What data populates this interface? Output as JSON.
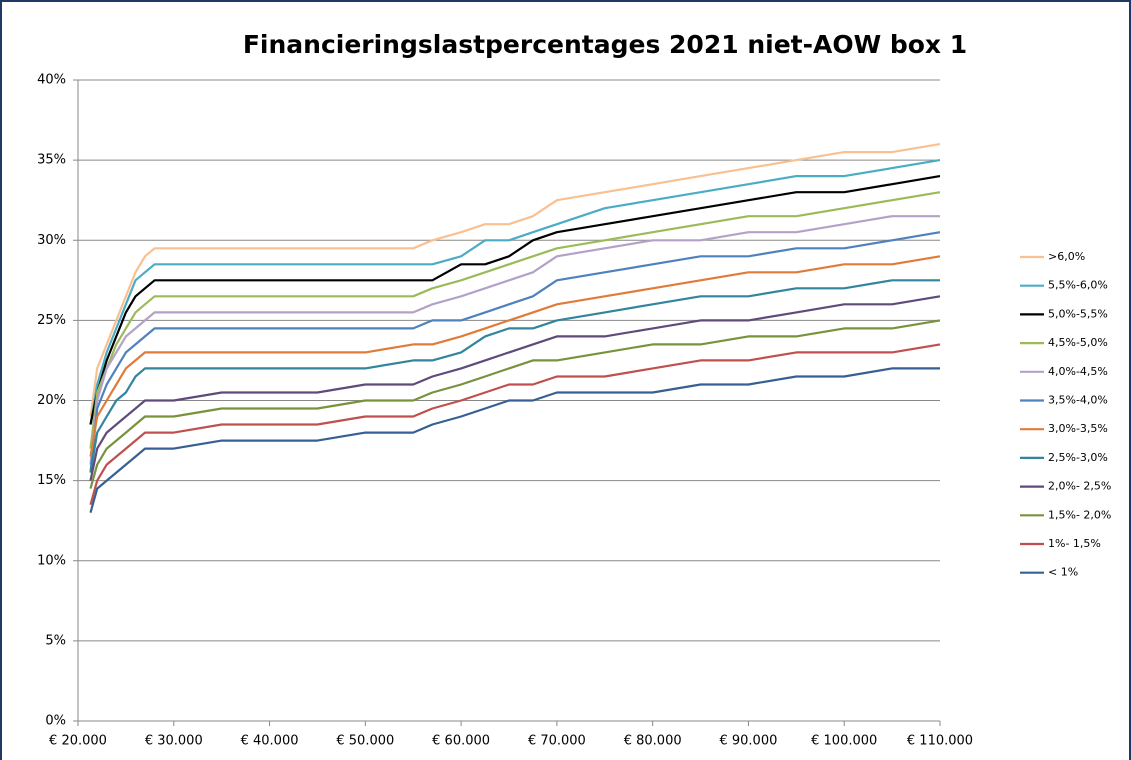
{
  "chart_data": {
    "type": "line",
    "title": "Financieringslastpercentages 2021 niet-AOW box 1",
    "x": [
      21300,
      22000,
      23000,
      24000,
      25000,
      26000,
      27000,
      28000,
      30000,
      35000,
      40000,
      45000,
      50000,
      55000,
      57000,
      60000,
      62500,
      65000,
      67500,
      70000,
      75000,
      80000,
      85000,
      90000,
      95000,
      100000,
      105000,
      110000
    ],
    "series": [
      {
        "name": ">6,0%",
        "color": "#fac090",
        "values": [
          19,
          22,
          23.5,
          25,
          26.5,
          28,
          29,
          29.5,
          29.5,
          29.5,
          29.5,
          29.5,
          29.5,
          29.5,
          30,
          30.5,
          31,
          31,
          31.5,
          32.5,
          33,
          33.5,
          34,
          34.5,
          35,
          35.5,
          35.5,
          36
        ]
      },
      {
        "name": "5,5%-6,0%",
        "color": "#4bacc6",
        "values": [
          18.5,
          21,
          23,
          24.5,
          26,
          27.5,
          28,
          28.5,
          28.5,
          28.5,
          28.5,
          28.5,
          28.5,
          28.5,
          28.5,
          29,
          30,
          30,
          30.5,
          31,
          32,
          32.5,
          33,
          33.5,
          34,
          34,
          34.5,
          35
        ]
      },
      {
        "name": "5,0%-5,5%",
        "color": "#000000",
        "values": [
          18.5,
          20.5,
          22.5,
          24,
          25.5,
          26.5,
          27,
          27.5,
          27.5,
          27.5,
          27.5,
          27.5,
          27.5,
          27.5,
          27.5,
          28.5,
          28.5,
          29,
          30,
          30.5,
          31,
          31.5,
          32,
          32.5,
          33,
          33,
          33.5,
          34
        ]
      },
      {
        "name": "4,5%-5,0%",
        "color": "#9bbb59",
        "values": [
          17,
          20.5,
          22,
          23.5,
          24.5,
          25.5,
          26,
          26.5,
          26.5,
          26.5,
          26.5,
          26.5,
          26.5,
          26.5,
          27,
          27.5,
          28,
          28.5,
          29,
          29.5,
          30,
          30.5,
          31,
          31.5,
          31.5,
          32,
          32.5,
          33
        ]
      },
      {
        "name": "4,0%-4,5%",
        "color": "#b3a2c7",
        "values": [
          16,
          20,
          22,
          23,
          24,
          24.5,
          25,
          25.5,
          25.5,
          25.5,
          25.5,
          25.5,
          25.5,
          25.5,
          26,
          26.5,
          27,
          27.5,
          28,
          29,
          29.5,
          30,
          30,
          30.5,
          30.5,
          31,
          31.5,
          31.5
        ]
      },
      {
        "name": "3,5%-4,0%",
        "color": "#4f81bd",
        "values": [
          15.5,
          19.5,
          21,
          22,
          23,
          23.5,
          24,
          24.5,
          24.5,
          24.5,
          24.5,
          24.5,
          24.5,
          24.5,
          25,
          25,
          25.5,
          26,
          26.5,
          27.5,
          28,
          28.5,
          29,
          29,
          29.5,
          29.5,
          30,
          30.5
        ]
      },
      {
        "name": "3,0%-3,5%",
        "color": "#e07b39",
        "values": [
          16.5,
          19,
          20,
          21,
          22,
          22.5,
          23,
          23,
          23,
          23,
          23,
          23,
          23,
          23.5,
          23.5,
          24,
          24.5,
          25,
          25.5,
          26,
          26.5,
          27,
          27.5,
          28,
          28,
          28.5,
          28.5,
          29
        ]
      },
      {
        "name": "2,5%-3,0%",
        "color": "#31859c",
        "values": [
          15.5,
          18,
          19,
          20,
          20.5,
          21.5,
          22,
          22,
          22,
          22,
          22,
          22,
          22,
          22.5,
          22.5,
          23,
          24,
          24.5,
          24.5,
          25,
          25.5,
          26,
          26.5,
          26.5,
          27,
          27,
          27.5,
          27.5
        ]
      },
      {
        "name": "2,0%- 2,5%",
        "color": "#604a7b",
        "values": [
          15,
          17,
          18,
          18.5,
          19,
          19.5,
          20,
          20,
          20,
          20.5,
          20.5,
          20.5,
          21,
          21,
          21.5,
          22,
          22.5,
          23,
          23.5,
          24,
          24,
          24.5,
          25,
          25,
          25.5,
          26,
          26,
          26.5
        ]
      },
      {
        "name": "1,5%- 2,0%",
        "color": "#77933c",
        "values": [
          14.5,
          16,
          17,
          17.5,
          18,
          18.5,
          19,
          19,
          19,
          19.5,
          19.5,
          19.5,
          20,
          20,
          20.5,
          21,
          21.5,
          22,
          22.5,
          22.5,
          23,
          23.5,
          23.5,
          24,
          24,
          24.5,
          24.5,
          25
        ]
      },
      {
        "name": "1%- 1,5%",
        "color": "#c0504d",
        "values": [
          13.5,
          15,
          16,
          16.5,
          17,
          17.5,
          18,
          18,
          18,
          18.5,
          18.5,
          18.5,
          19,
          19,
          19.5,
          20,
          20.5,
          21,
          21,
          21.5,
          21.5,
          22,
          22.5,
          22.5,
          23,
          23,
          23,
          23.5
        ]
      },
      {
        "name": "< 1%",
        "color": "#376092",
        "values": [
          13,
          14.5,
          15,
          15.5,
          16,
          16.5,
          17,
          17,
          17,
          17.5,
          17.5,
          17.5,
          18,
          18,
          18.5,
          19,
          19.5,
          20,
          20,
          20.5,
          20.5,
          20.5,
          21,
          21,
          21.5,
          21.5,
          22,
          22
        ]
      }
    ],
    "xlim": [
      20000,
      110000
    ],
    "xticks": [
      {
        "value": 20000,
        "label": "€ 20.000"
      },
      {
        "value": 30000,
        "label": "€ 30.000"
      },
      {
        "value": 40000,
        "label": "€ 40.000"
      },
      {
        "value": 50000,
        "label": "€ 50.000"
      },
      {
        "value": 60000,
        "label": "€ 60.000"
      },
      {
        "value": 70000,
        "label": "€ 70.000"
      },
      {
        "value": 80000,
        "label": "€ 80.000"
      },
      {
        "value": 90000,
        "label": "€ 90.000"
      },
      {
        "value": 100000,
        "label": "€ 100.000"
      },
      {
        "value": 110000,
        "label": "€ 110.000"
      }
    ],
    "ylim": [
      0,
      40
    ],
    "yticks": [
      {
        "value": 0,
        "label": "0%"
      },
      {
        "value": 5,
        "label": "5%"
      },
      {
        "value": 10,
        "label": "10%"
      },
      {
        "value": 15,
        "label": "15%"
      },
      {
        "value": 20,
        "label": "20%"
      },
      {
        "value": 25,
        "label": "25%"
      },
      {
        "value": 30,
        "label": "30%"
      },
      {
        "value": 35,
        "label": "35%"
      },
      {
        "value": 40,
        "label": "40%"
      }
    ],
    "grid": true,
    "legend": "right"
  }
}
